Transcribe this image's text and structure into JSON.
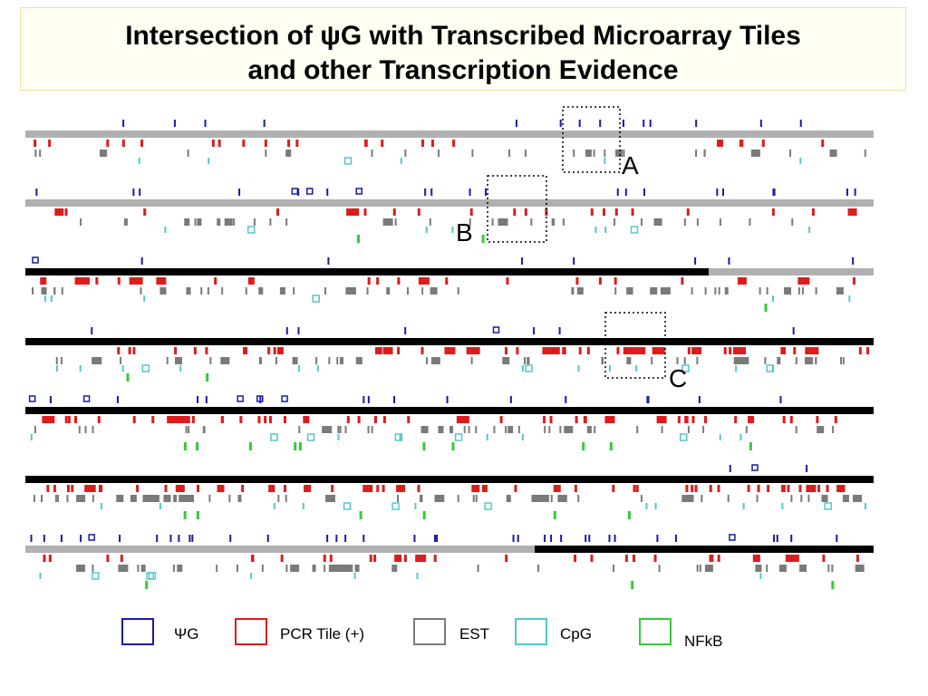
{
  "title": {
    "line1": "Intersection of ψG with Transcribed Microarray Tiles",
    "line2": "and other Transcription Evidence"
  },
  "colors": {
    "psiG": "#1a1aa8",
    "pcr": "#dd1c1c",
    "est": "#7a7a7a",
    "cpg": "#52c8cc",
    "nfkb": "#33cc33",
    "track_gray": "#b0b0b0",
    "track_black": "#000000"
  },
  "legend": [
    {
      "key": "psiG",
      "label": "ΨG",
      "color": "#1a1aa8"
    },
    {
      "key": "pcr",
      "label": "PCR Tile (+)",
      "color": "#dd1c1c"
    },
    {
      "key": "est",
      "label": "EST",
      "color": "#7a7a7a"
    },
    {
      "key": "cpg",
      "label": "CpG",
      "color": "#52c8cc"
    },
    {
      "key": "nfkb",
      "label": "NFkB",
      "color": "#33cc33"
    }
  ],
  "callouts": [
    {
      "label": "A"
    },
    {
      "label": "B"
    },
    {
      "label": "C"
    }
  ]
}
